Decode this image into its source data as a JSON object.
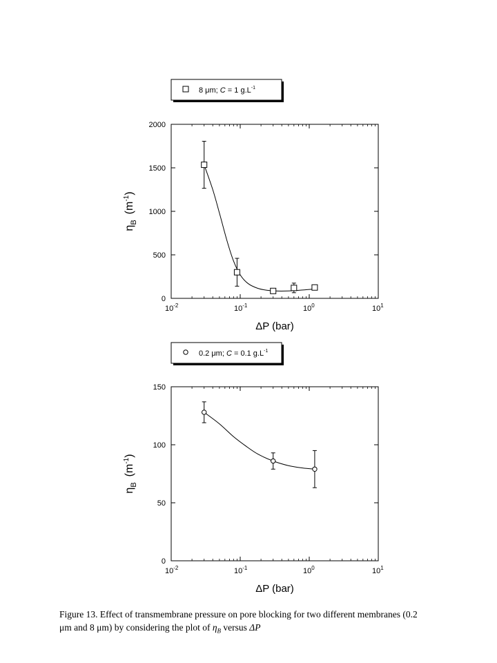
{
  "chart_data": [
    {
      "type": "scatter",
      "legend": {
        "marker": "square",
        "label": "8 μm; C = 1 g.L",
        "label_pre": "8 μm; ",
        "label_c": "C",
        "label_post": " = 1 g.L",
        "label_sup": "-1"
      },
      "xscale": "log",
      "xlim": [
        0.01,
        10
      ],
      "ylim": [
        0,
        2000
      ],
      "yticks": [
        0,
        500,
        1000,
        1500,
        2000
      ],
      "xticks": [
        {
          "base": "10",
          "exp": "-2",
          "value": 0.01
        },
        {
          "base": "10",
          "exp": "-1",
          "value": 0.1
        },
        {
          "base": "10",
          "exp": "0",
          "value": 1
        },
        {
          "base": "10",
          "exp": "1",
          "value": 10
        }
      ],
      "xlabel": "ΔP (bar)",
      "ylabel": "ηB (m-1)",
      "ylabel_parts": {
        "eta": "η",
        "sub": "B",
        "unit_pre": "(m",
        "unit_sup": "-1",
        "unit_post": ")"
      },
      "xlabel_parts": {
        "delta": "Δ",
        "rest": "P (bar)"
      },
      "points": [
        {
          "x": 0.03,
          "y": 1535,
          "err": 270
        },
        {
          "x": 0.09,
          "y": 300,
          "err": 160
        },
        {
          "x": 0.3,
          "y": 85,
          "err": 20
        },
        {
          "x": 0.6,
          "y": 120,
          "err": 55
        },
        {
          "x": 1.2,
          "y": 125,
          "err": 0
        }
      ],
      "fit_curve": [
        [
          0.03,
          1535
        ],
        [
          0.04,
          1250
        ],
        [
          0.05,
          980
        ],
        [
          0.065,
          650
        ],
        [
          0.08,
          430
        ],
        [
          0.1,
          270
        ],
        [
          0.13,
          170
        ],
        [
          0.18,
          115
        ],
        [
          0.25,
          92
        ],
        [
          0.35,
          84
        ],
        [
          0.5,
          85
        ],
        [
          0.7,
          92
        ],
        [
          1.0,
          102
        ],
        [
          1.2,
          110
        ]
      ]
    },
    {
      "type": "scatter",
      "legend": {
        "marker": "circle",
        "label": "0.2 μm; C = 0.1 g.L",
        "label_pre": "0.2 μm; ",
        "label_c": "C",
        "label_post": " = 0.1 g.L",
        "label_sup": "-1"
      },
      "xscale": "log",
      "xlim": [
        0.01,
        10
      ],
      "ylim": [
        0,
        150
      ],
      "yticks": [
        0,
        50,
        100,
        150
      ],
      "xticks": [
        {
          "base": "10",
          "exp": "-2",
          "value": 0.01
        },
        {
          "base": "10",
          "exp": "-1",
          "value": 0.1
        },
        {
          "base": "10",
          "exp": "0",
          "value": 1
        },
        {
          "base": "10",
          "exp": "1",
          "value": 10
        }
      ],
      "xlabel": "ΔP (bar)",
      "ylabel": "ηB (m-1)",
      "ylabel_parts": {
        "eta": "η",
        "sub": "B",
        "unit_pre": "(m",
        "unit_sup": "-1",
        "unit_post": ")"
      },
      "xlabel_parts": {
        "delta": "Δ",
        "rest": "P (bar)"
      },
      "points": [
        {
          "x": 0.03,
          "y": 128,
          "err": 9
        },
        {
          "x": 0.3,
          "y": 86,
          "err": 7
        },
        {
          "x": 1.2,
          "y": 79,
          "err": 16
        }
      ],
      "fit_curve": [
        [
          0.03,
          128
        ],
        [
          0.05,
          118
        ],
        [
          0.08,
          107
        ],
        [
          0.12,
          99
        ],
        [
          0.18,
          92
        ],
        [
          0.3,
          86
        ],
        [
          0.5,
          82
        ],
        [
          0.8,
          80
        ],
        [
          1.2,
          79
        ]
      ]
    }
  ],
  "caption": {
    "line1": "Figure 13. Effect of transmembrane pressure on pore blocking for two different membranes (0.2",
    "line2_pre": "μm and 8 μm) by considering the plot of ",
    "eta": "η",
    "eta_sub": "B",
    "versus": " versus ",
    "delta_p": "ΔP"
  }
}
